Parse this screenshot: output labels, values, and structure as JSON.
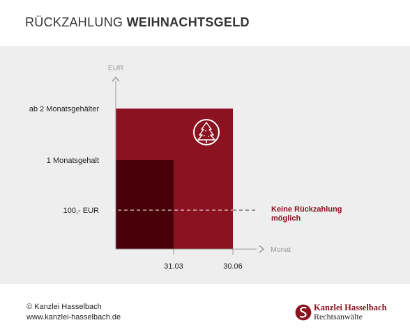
{
  "header": {
    "title_light": "RÜCKZAHLUNG",
    "title_bold": "WEIHNACHTSGELD"
  },
  "chart_data": {
    "type": "bar",
    "ylabel": "EUR",
    "xlabel": "Monat",
    "y_ticks": [
      "100,- EUR",
      "1 Monatsgehalt",
      "ab 2 Monatsgehälter"
    ],
    "x_ticks": [
      "31.03",
      "30.06"
    ],
    "steps": [
      {
        "until": "31.03",
        "level": "1 Monatsgehalt"
      },
      {
        "until": "30.06",
        "level": "ab 2 Monatsgehälter"
      }
    ],
    "threshold": {
      "level": "100,- EUR",
      "label_line1": "Keine Rückzahlung",
      "label_line2": "möglich"
    },
    "icon": "christmas-tree-icon",
    "colors": {
      "outer_bar": "#8b1220",
      "inner_bar": "#4a0008",
      "threshold_label": "#8b1220",
      "axis": "#999999",
      "background": "#eeeeee"
    }
  },
  "footer": {
    "copyright": "© Kanzlei Hasselbach",
    "url": "www.kanzlei-hasselbach.de",
    "logo_name": "Kanzlei Hasselbach",
    "logo_sub": "Rechtsanwälte"
  }
}
